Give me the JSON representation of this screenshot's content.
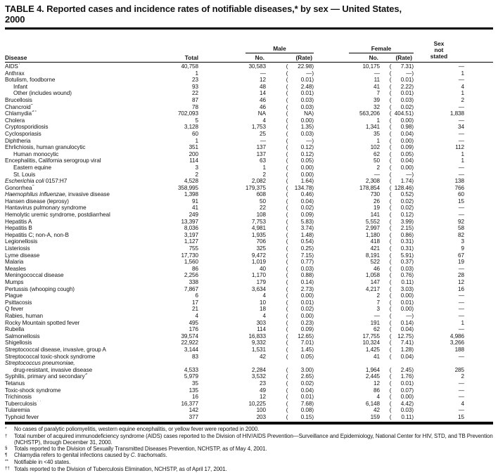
{
  "title": {
    "line1": "TABLE 4. Reported cases and incidence rates of notifiable diseases,* by sex — United States,",
    "line2": "2000"
  },
  "header": {
    "disease": "Disease",
    "total": "Total",
    "male": "Male",
    "female": "Female",
    "no_label": "No.",
    "rate_label": "(Rate)",
    "sex_not_stated": [
      "Sex",
      "not",
      "stated"
    ]
  },
  "rows": [
    {
      "n": "AIDS",
      "sup": "†",
      "t": "40,758",
      "mn": "30,583",
      "mr": "22.98",
      "fn": "10,175",
      "fr": "7.31",
      "s": "—"
    },
    {
      "n": "Anthrax",
      "t": "1",
      "mn": "—",
      "mr": "—",
      "fn": "—",
      "fr": "—",
      "s": "1"
    },
    {
      "n": "Botulism, foodborne",
      "t": "23",
      "mn": "12",
      "mr": "0.01",
      "fn": "11",
      "fr": "0.01",
      "s": "—"
    },
    {
      "n": "Infant",
      "ind": 1,
      "t": "93",
      "mn": "48",
      "mr": "2.48",
      "fn": "41",
      "fr": "2.22",
      "s": "4"
    },
    {
      "n": "Other (includes wound)",
      "ind": 1,
      "t": "22",
      "mn": "14",
      "mr": "0.01",
      "fn": "7",
      "fr": "0.01",
      "s": "1"
    },
    {
      "n": "Brucellosis",
      "t": "87",
      "mn": "46",
      "mr": "0.03",
      "fn": "39",
      "fr": "0.03",
      "s": "2"
    },
    {
      "n": "Chancroid",
      "sup": "§",
      "t": "78",
      "mn": "46",
      "mr": "0.03",
      "fn": "32",
      "fr": "0.02",
      "s": "—"
    },
    {
      "n": "Chlamydia",
      "sup": "§¶",
      "t": "702,093",
      "mn": "NA",
      "mr": "NA",
      "fn": "563,206",
      "fr": "404.51",
      "s": "1,838"
    },
    {
      "n": "Cholera",
      "t": "5",
      "mn": "4",
      "mr": "0.00",
      "fn": "1",
      "fr": "0.00",
      "s": "—"
    },
    {
      "n": "Cryptosporidiosis",
      "t": "3,128",
      "mn": "1,753",
      "mr": "1.35",
      "fn": "1,341",
      "fr": "0.98",
      "s": "34"
    },
    {
      "n": "Cyclosporiasis",
      "sup": "**",
      "t": "60",
      "mn": "25",
      "mr": "0.03",
      "fn": "35",
      "fr": "0.04",
      "s": "—"
    },
    {
      "n": "Diphtheria",
      "t": "1",
      "mn": "—",
      "mr": "—",
      "fn": "1",
      "fr": "0.00",
      "s": "—"
    },
    {
      "n": "Ehrlichiosis, human granulocytic",
      "sup": "**",
      "t": "351",
      "mn": "137",
      "mr": "0.12",
      "fn": "102",
      "fr": "0.09",
      "s": "112"
    },
    {
      "n": "Human monocytic",
      "sup": "**",
      "ind": 1,
      "t": "200",
      "mn": "137",
      "mr": "0.12",
      "fn": "62",
      "fr": "0.05",
      "s": "1"
    },
    {
      "n": "Encephalitis, California serogroup viral",
      "t": "114",
      "mn": "63",
      "mr": "0.05",
      "fn": "50",
      "fr": "0.04",
      "s": "1"
    },
    {
      "n": "Eastern equine",
      "ind": 1,
      "t": "3",
      "mn": "1",
      "mr": "0.00",
      "fn": "2",
      "fr": "0.00",
      "s": "—"
    },
    {
      "n": "St. Louis",
      "ind": 1,
      "t": "2",
      "mn": "2",
      "mr": "0.00",
      "fn": "—",
      "fr": "—",
      "s": "—"
    },
    {
      "it": "Escherichia coli",
      "n": " 0157:H7",
      "t": "4,528",
      "mn": "2,082",
      "mr": "1.64",
      "fn": "2,308",
      "fr": "1.74",
      "s": "138"
    },
    {
      "n": "Gonorrhea",
      "sup": "§",
      "t": "358,995",
      "mn": "179,375",
      "mr": "134.78",
      "fn": "178,854",
      "fr": "128.46",
      "s": "766"
    },
    {
      "it": "Haemophilus influenzae,",
      "n": " invasive disease",
      "t": "1,398",
      "mn": "608",
      "mr": "0.46",
      "fn": "730",
      "fr": "0.52",
      "s": "60"
    },
    {
      "n": "Hansen disease (leprosy)",
      "t": "91",
      "mn": "50",
      "mr": "0.04",
      "fn": "26",
      "fr": "0.02",
      "s": "15"
    },
    {
      "n": "Hantavirus pulmonary syndrome",
      "t": "41",
      "mn": "22",
      "mr": "0.02",
      "fn": "19",
      "fr": "0.02",
      "s": "—"
    },
    {
      "n": "Hemolytic uremic syndrome, postdiarrheal",
      "t": "249",
      "mn": "108",
      "mr": "0.09",
      "fn": "141",
      "fr": "0.12",
      "s": "—"
    },
    {
      "n": "Hepatitis A",
      "t": "13,397",
      "mn": "7,753",
      "mr": "5.83",
      "fn": "5,552",
      "fr": "3.99",
      "s": "92"
    },
    {
      "n": "Hepatitis B",
      "t": "8,036",
      "mn": "4,981",
      "mr": "3.74",
      "fn": "2,997",
      "fr": "2.15",
      "s": "58"
    },
    {
      "n": "Hepatitis C; non-A, non-B",
      "t": "3,197",
      "mn": "1,935",
      "mr": "1.48",
      "fn": "1,180",
      "fr": "0.86",
      "s": "82"
    },
    {
      "n": "Legionellosis",
      "t": "1,127",
      "mn": "706",
      "mr": "0.54",
      "fn": "418",
      "fr": "0.31",
      "s": "3"
    },
    {
      "n": "Listeriosis",
      "t": "755",
      "mn": "325",
      "mr": "0.25",
      "fn": "421",
      "fr": "0.31",
      "s": "9"
    },
    {
      "n": "Lyme disease",
      "t": "17,730",
      "mn": "9,472",
      "mr": "7.15",
      "fn": "8,191",
      "fr": "5.91",
      "s": "67"
    },
    {
      "n": "Malaria",
      "t": "1,560",
      "mn": "1,019",
      "mr": "0.77",
      "fn": "522",
      "fr": "0.37",
      "s": "19"
    },
    {
      "n": "Measles",
      "t": "86",
      "mn": "40",
      "mr": "0.03",
      "fn": "46",
      "fr": "0.03",
      "s": "—"
    },
    {
      "n": "Meningococcal disease",
      "t": "2,256",
      "mn": "1,170",
      "mr": "0.88",
      "fn": "1,058",
      "fr": "0.76",
      "s": "28"
    },
    {
      "n": "Mumps",
      "t": "338",
      "mn": "179",
      "mr": "0.14",
      "fn": "147",
      "fr": "0.11",
      "s": "12"
    },
    {
      "n": "Pertussis (whooping cough)",
      "t": "7,867",
      "mn": "3,634",
      "mr": "2.73",
      "fn": "4,217",
      "fr": "3.03",
      "s": "16"
    },
    {
      "n": "Plague",
      "t": "6",
      "mn": "4",
      "mr": "0.00",
      "fn": "2",
      "fr": "0.00",
      "s": "—"
    },
    {
      "n": "Psittacosis",
      "t": "17",
      "mn": "10",
      "mr": "0.01",
      "fn": "7",
      "fr": "0.01",
      "s": "—"
    },
    {
      "n": "Q fever",
      "sup": "**",
      "t": "21",
      "mn": "18",
      "mr": "0.02",
      "fn": "3",
      "fr": "0.00",
      "s": "—"
    },
    {
      "n": "Rabies, human",
      "t": "4",
      "mn": "4",
      "mr": "0.00",
      "fn": "—",
      "fr": "—",
      "s": "—"
    },
    {
      "n": "Rocky Mountain spotted fever",
      "t": "495",
      "mn": "303",
      "mr": "0.23",
      "fn": "191",
      "fr": "0.14",
      "s": "1"
    },
    {
      "n": "Rubella",
      "t": "176",
      "mn": "114",
      "mr": "0.09",
      "fn": "62",
      "fr": "0.04",
      "s": "—"
    },
    {
      "n": "Salmonellosis",
      "t": "39,574",
      "mn": "16,833",
      "mr": "12.65",
      "fn": "17,755",
      "fr": "12.75",
      "s": "4,986"
    },
    {
      "n": "Shigellosis",
      "t": "22,922",
      "mn": "9,332",
      "mr": "7.01",
      "fn": "10,324",
      "fr": "7.41",
      "s": "3,266"
    },
    {
      "n": "Streptococcal disease, invasive, group A",
      "sup": "**",
      "t": "3,144",
      "mn": "1,531",
      "mr": "1.45",
      "fn": "1,425",
      "fr": "1.28",
      "s": "188"
    },
    {
      "n": "Streptococcal toxic-shock syndrome",
      "sup": "**",
      "t": "83",
      "mn": "42",
      "mr": "0.05",
      "fn": "41",
      "fr": "0.04",
      "s": "—"
    },
    {
      "it": "Streptococcus pneumoniae,",
      "n": ""
    },
    {
      "n": "drug-resistant, invasive disease",
      "sup": "**",
      "ind": 1,
      "t": "4,533",
      "mn": "2,284",
      "mr": "3.00",
      "fn": "1,964",
      "fr": "2.45",
      "s": "285"
    },
    {
      "n": "Syphilis, primary and secondary",
      "sup": "§",
      "t": "5,979",
      "mn": "3,532",
      "mr": "2.65",
      "fn": "2,445",
      "fr": "1.76",
      "s": "2"
    },
    {
      "n": "Tetanus",
      "t": "35",
      "mn": "23",
      "mr": "0.02",
      "fn": "12",
      "fr": "0.01",
      "s": "—"
    },
    {
      "n": "Toxic-shock syndrome",
      "t": "135",
      "mn": "49",
      "mr": "0.04",
      "fn": "86",
      "fr": "0.07",
      "s": "—"
    },
    {
      "n": "Trichinosis",
      "t": "16",
      "mn": "12",
      "mr": "0.01",
      "fn": "4",
      "fr": "0.00",
      "s": "—"
    },
    {
      "n": "Tuberculosis",
      "sup": "††",
      "t": "16,377",
      "mn": "10,225",
      "mr": "7.68",
      "fn": "6,148",
      "fr": "4.42",
      "s": "4"
    },
    {
      "n": "Tularemia",
      "t": "142",
      "mn": "100",
      "mr": "0.08",
      "fn": "42",
      "fr": "0.03",
      "s": "—"
    },
    {
      "n": "Typhoid fever",
      "t": "377",
      "mn": "203",
      "mr": "0.15",
      "fn": "159",
      "fr": "0.11",
      "s": "15"
    }
  ],
  "footnotes": [
    {
      "m": "*",
      "text": "No cases of paralytic poliomyelitis, western equine encephalitis, or yellow fever were reported in 2000."
    },
    {
      "m": "†",
      "text": "Total number of acquired immunodeficiency syndrome (AIDS) cases reported to the Division of HIV/AIDS Prevention—Surveillance and Epidemiology, National Center for HIV, STD, and TB Prevention (NCHSTP), through December 31, 2000."
    },
    {
      "m": "§",
      "text": "Totals reported to the Division of Sexually Transmitted Diseases Prevention, NCHSTP, as of May 4, 2001."
    },
    {
      "m": "¶",
      "pre": "Chlamydia refers to genital infections caused by ",
      "it": "C. trachomatis",
      "post": "."
    },
    {
      "m": "**",
      "text": "Notifiable in <40 states."
    },
    {
      "m": "††",
      "text": "Totals reported to the Division of Tuberculosis Elimination, NCHSTP, as of April 17, 2001."
    }
  ]
}
